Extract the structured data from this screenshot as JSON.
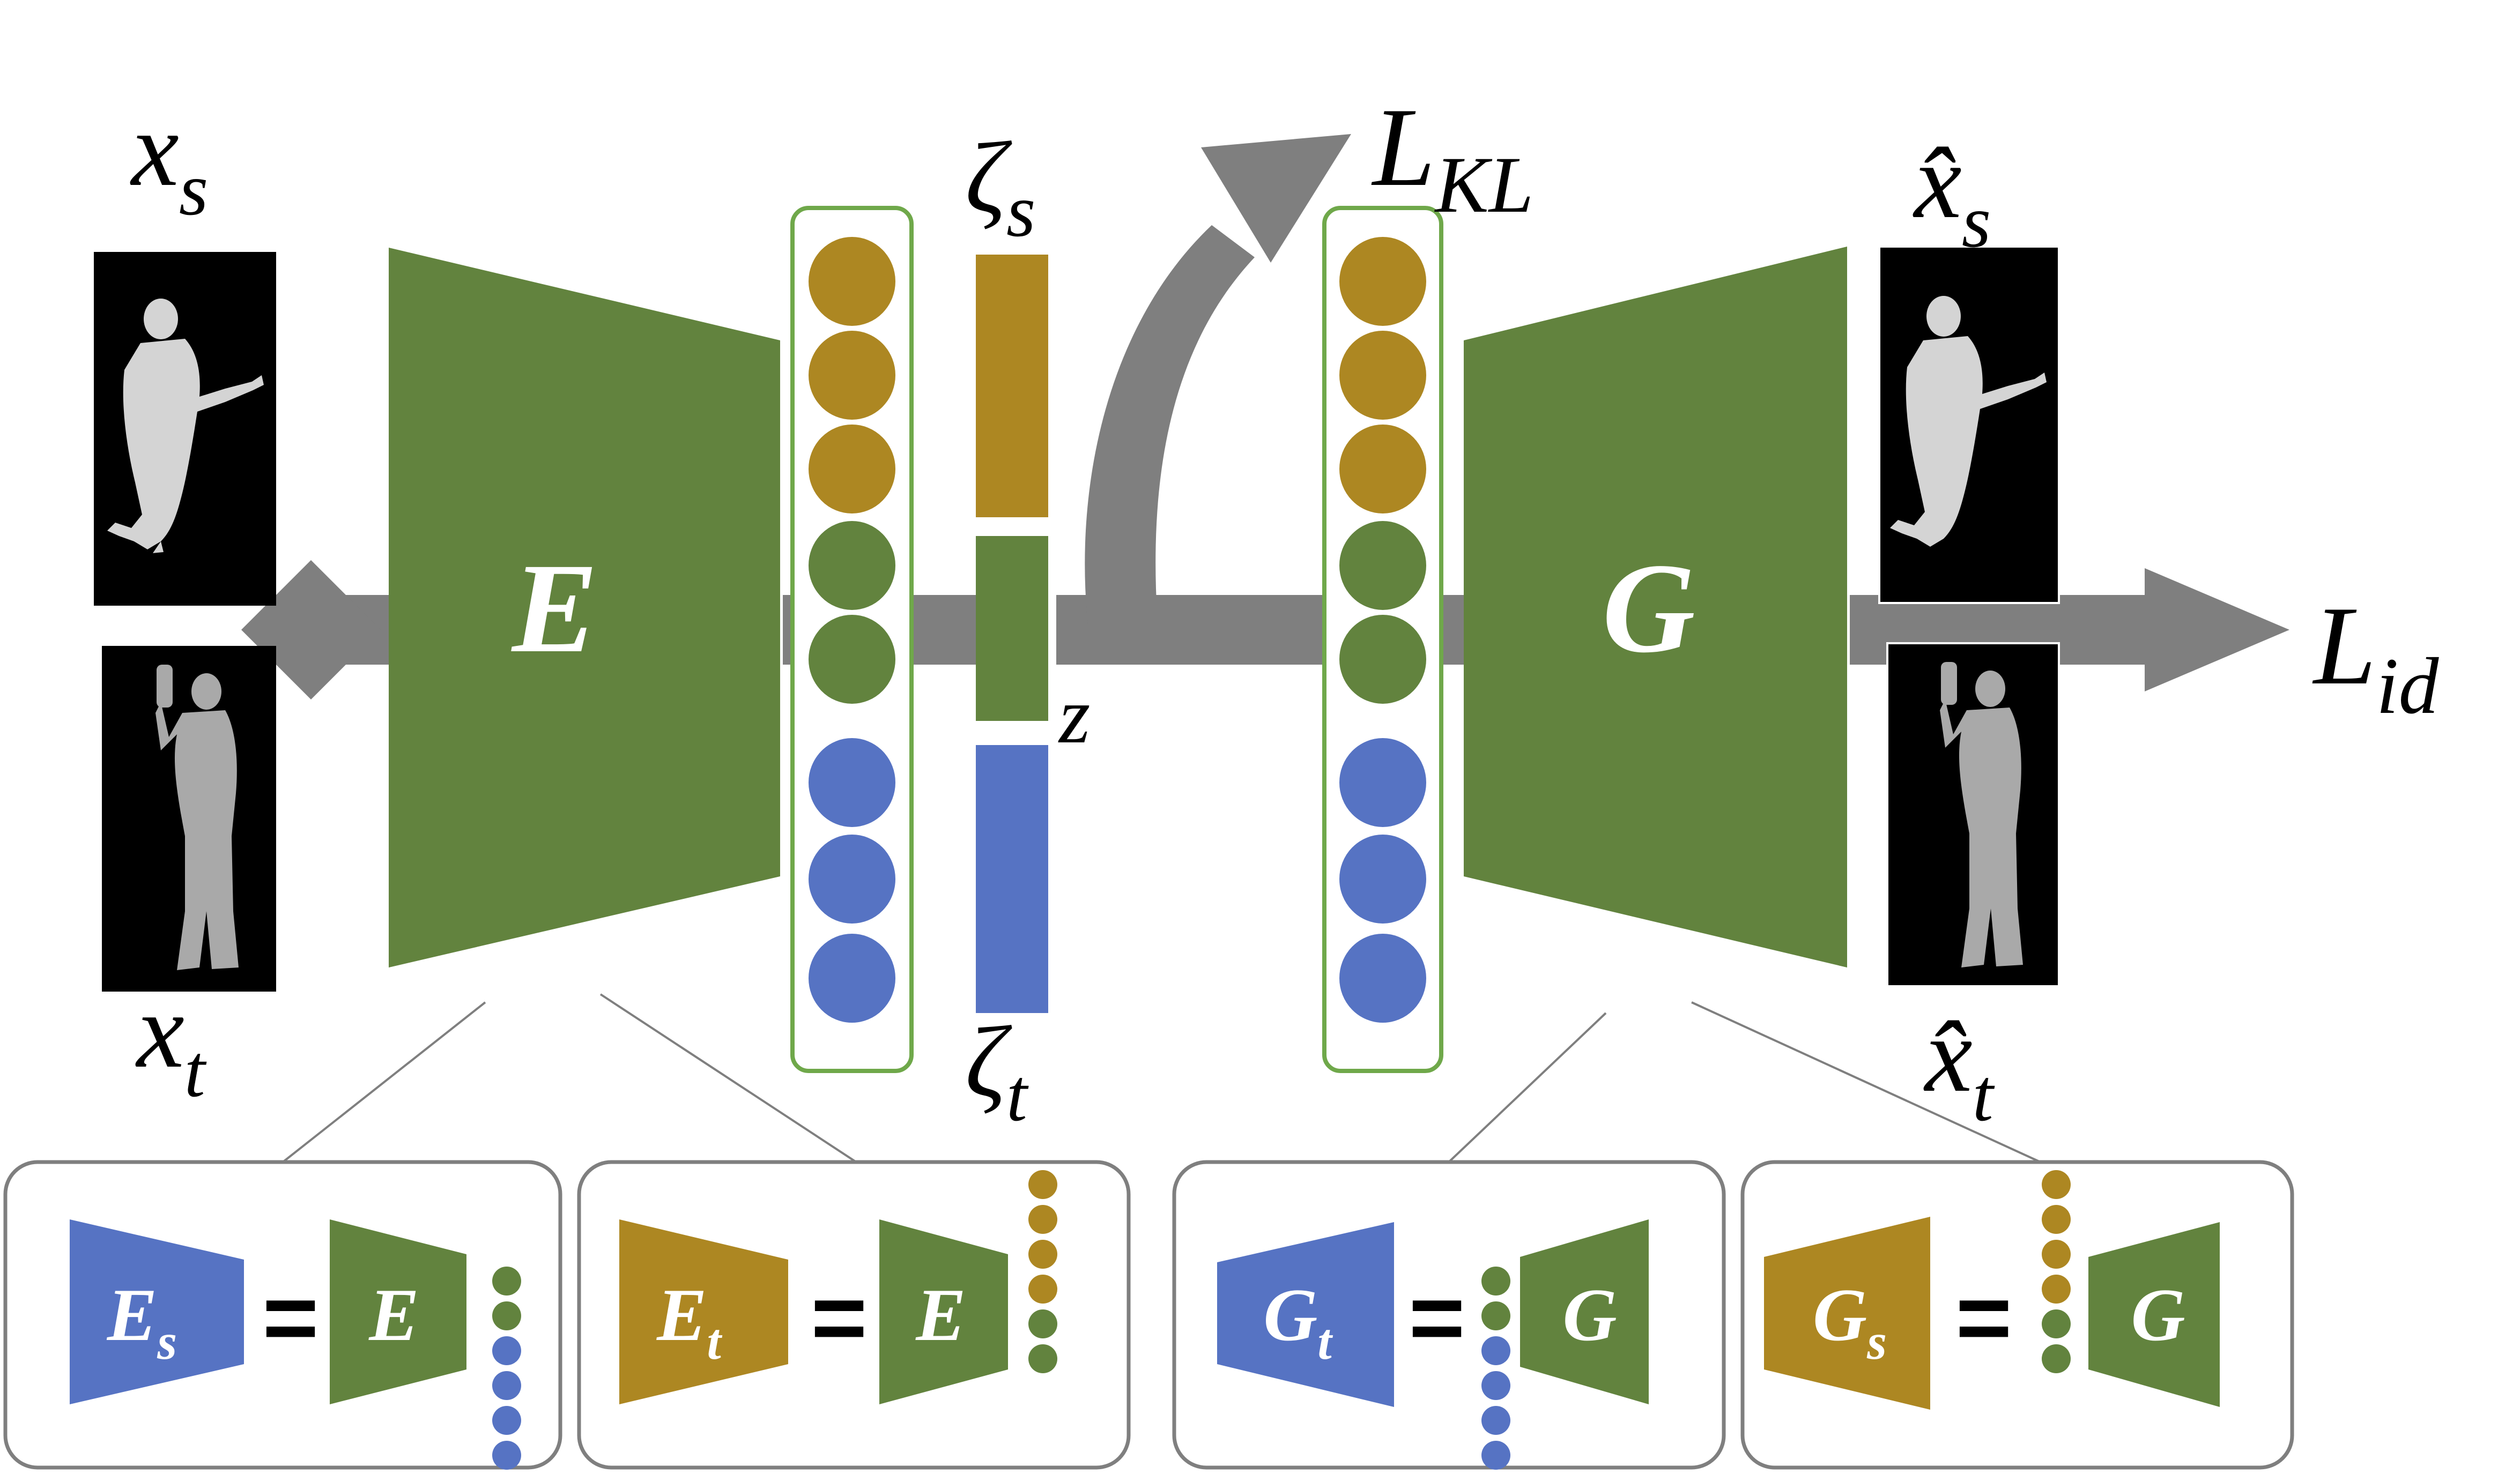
{
  "labels": {
    "xs_main": "x",
    "xs_sub": "s",
    "xt_main": "x",
    "xt_sub": "t",
    "xhat_s_main": "x̂",
    "xhat_s_sub": "s",
    "xhat_t_main": "x̂",
    "xhat_t_sub": "t",
    "zeta_s_main": "ζ",
    "zeta_s_sub": "s",
    "zeta_t_main": "ζ",
    "zeta_t_sub": "t",
    "z": "z",
    "lkl_main": "L",
    "lkl_sub": "KL",
    "lid_main": "L",
    "lid_sub": "id"
  },
  "blocks": {
    "encoder": "E",
    "generator": "G"
  },
  "legend": {
    "es_main": "E",
    "es_sub": "s",
    "et_main": "E",
    "et_sub": "t",
    "gt_main": "G",
    "gt_sub": "t",
    "gs_main": "G",
    "gs_sub": "s",
    "eq": "=",
    "e": "E",
    "g": "G"
  },
  "colors": {
    "green": "#62833e",
    "gold": "#ad8722",
    "blue": "#5673c3",
    "arrow": "#7f7f7f",
    "frame": "#6fa84a",
    "panel_border": "#7f7f7f"
  },
  "latent": {
    "node_colors": [
      "gold",
      "gold",
      "gold",
      "green",
      "green",
      "blue",
      "blue",
      "blue"
    ]
  }
}
